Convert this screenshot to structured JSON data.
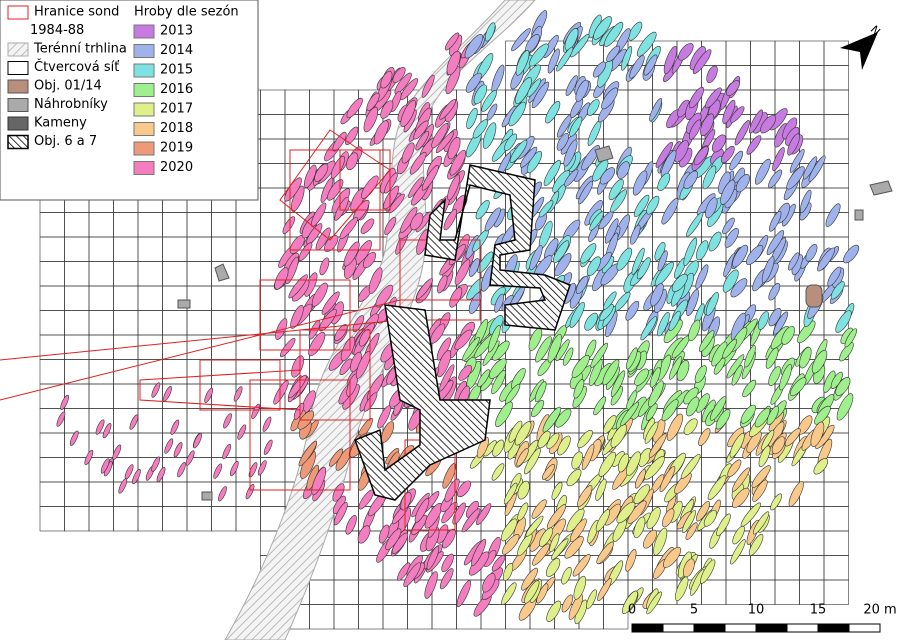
{
  "legend_left": {
    "items": [
      {
        "label": [
          "Hranice sond",
          "1984-88"
        ]
      },
      {
        "label": [
          "Terénní trhlina"
        ]
      },
      {
        "label": [
          "Čtvercová síť"
        ]
      },
      {
        "label": [
          "Obj. 01/14"
        ]
      },
      {
        "label": [
          "Náhrobníky"
        ]
      },
      {
        "label": [
          "Kameny"
        ]
      },
      {
        "label": [
          "Obj. 6 a 7"
        ]
      }
    ]
  },
  "legend_right": {
    "title": "Hroby dle sezón",
    "seasons": [
      {
        "label": "2013",
        "color": "#c77be0"
      },
      {
        "label": "2014",
        "color": "#9fb2ec"
      },
      {
        "label": "2015",
        "color": "#7ee3e0"
      },
      {
        "label": "2016",
        "color": "#9ff08c"
      },
      {
        "label": "2017",
        "color": "#dff08a"
      },
      {
        "label": "2018",
        "color": "#f9c98c"
      },
      {
        "label": "2019",
        "color": "#ee9a78"
      },
      {
        "label": "2020",
        "color": "#f37dbf"
      }
    ]
  },
  "scale_bar": {
    "labels": [
      "0",
      "5",
      "10",
      "15",
      "20 m"
    ]
  }
}
